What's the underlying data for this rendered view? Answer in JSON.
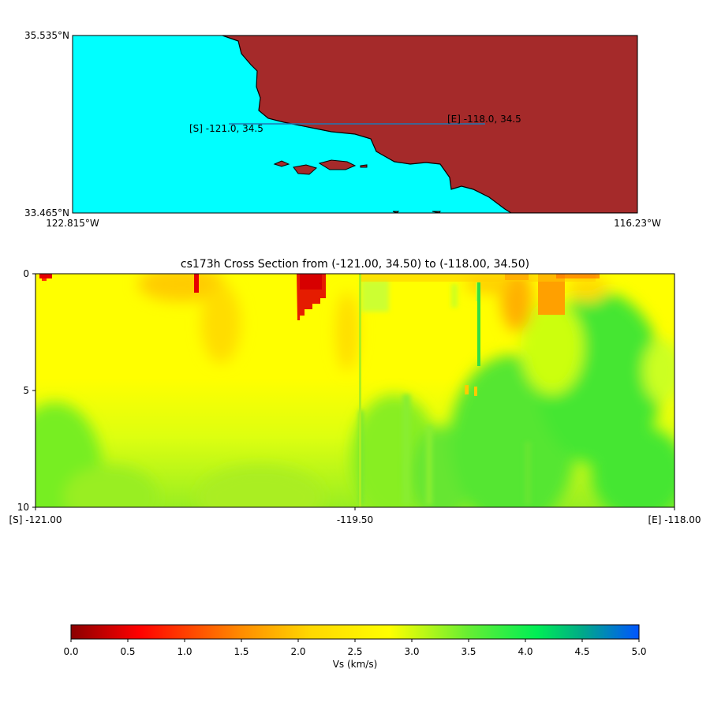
{
  "map": {
    "lat_top_label": "35.535°N",
    "lat_bottom_label": "33.465°N",
    "lon_left_label": "122.815°W",
    "lon_right_label": "116.23°W",
    "start_label": "[S] -121.0, 34.5",
    "end_label": "[E] -118.0, 34.5",
    "land_color": "#a52a2a",
    "ocean_color": "#00ffff",
    "line_color": "#1f77b4"
  },
  "chart_data": {
    "type": "heatmap",
    "title": "cs173h Cross Section from (-121.00, 34.50) to (-118.00, 34.50)",
    "x_ticks": [
      "[S] -121.00",
      "-119.50",
      "[E] -118.00"
    ],
    "x_range": [
      -121.0,
      -118.0
    ],
    "y_ticks": [
      "0",
      "5",
      "10"
    ],
    "y_range": [
      0,
      10
    ],
    "y_inverted": true,
    "colorbar": {
      "label": "Vs (km/s)",
      "ticks": [
        "0.0",
        "0.5",
        "1.0",
        "1.5",
        "2.0",
        "2.5",
        "3.0",
        "3.5",
        "4.0",
        "4.5",
        "5.0"
      ],
      "range": [
        0.0,
        5.0
      ],
      "colors": [
        "#8b0000",
        "#ff0000",
        "#ffa500",
        "#ffff00",
        "#33ee33",
        "#00ee77",
        "#0055ff"
      ]
    }
  }
}
